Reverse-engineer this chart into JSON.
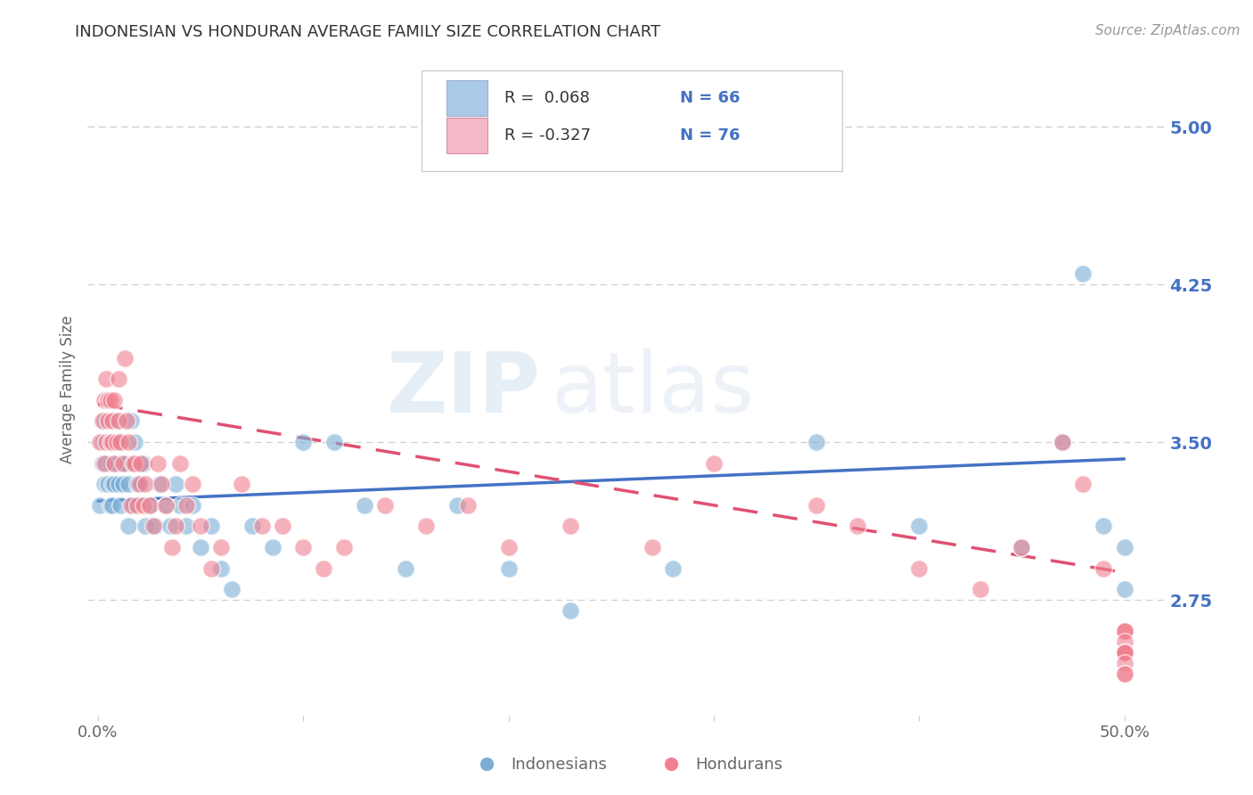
{
  "title": "INDONESIAN VS HONDURAN AVERAGE FAMILY SIZE CORRELATION CHART",
  "source": "Source: ZipAtlas.com",
  "ylabel": "Average Family Size",
  "right_yticks": [
    2.75,
    3.5,
    4.25,
    5.0
  ],
  "right_ytick_labels": [
    "2.75",
    "3.50",
    "4.25",
    "5.00"
  ],
  "legend_r1": "R =  0.068",
  "legend_n1": "N = 66",
  "legend_r2": "R = -0.327",
  "legend_n2": "N = 76",
  "watermark_zip": "ZIP",
  "watermark_atlas": "atlas",
  "indonesian_color": "#7aaed6",
  "honduran_color": "#f08090",
  "indonesian_trend_color": "#4472c4",
  "honduran_trend_color": "#e05070",
  "legend_box1_color": "#aac8e8",
  "legend_box2_color": "#f4b8c8",
  "indonesian_scatter_x": [
    0.001,
    0.002,
    0.002,
    0.003,
    0.003,
    0.004,
    0.004,
    0.005,
    0.005,
    0.006,
    0.006,
    0.006,
    0.007,
    0.007,
    0.008,
    0.008,
    0.009,
    0.009,
    0.01,
    0.01,
    0.011,
    0.011,
    0.012,
    0.013,
    0.014,
    0.015,
    0.015,
    0.016,
    0.017,
    0.018,
    0.019,
    0.02,
    0.021,
    0.022,
    0.023,
    0.025,
    0.028,
    0.03,
    0.033,
    0.035,
    0.038,
    0.04,
    0.043,
    0.046,
    0.05,
    0.055,
    0.06,
    0.065,
    0.075,
    0.085,
    0.1,
    0.115,
    0.13,
    0.15,
    0.175,
    0.2,
    0.23,
    0.28,
    0.35,
    0.4,
    0.45,
    0.47,
    0.48,
    0.49,
    0.5,
    0.5
  ],
  "indonesian_scatter_y": [
    3.2,
    3.4,
    3.5,
    3.3,
    3.6,
    3.4,
    3.5,
    3.5,
    3.3,
    3.2,
    3.4,
    3.5,
    3.3,
    3.2,
    3.4,
    3.3,
    3.5,
    3.6,
    3.3,
    3.4,
    3.5,
    3.2,
    3.3,
    3.4,
    3.4,
    3.3,
    3.1,
    3.6,
    3.2,
    3.5,
    3.3,
    3.4,
    3.3,
    3.4,
    3.1,
    3.2,
    3.1,
    3.3,
    3.2,
    3.1,
    3.3,
    3.2,
    3.1,
    3.2,
    3.0,
    3.1,
    2.9,
    2.8,
    3.1,
    3.0,
    3.5,
    3.5,
    3.2,
    2.9,
    3.2,
    2.9,
    2.7,
    2.9,
    3.5,
    3.1,
    3.0,
    3.5,
    4.3,
    3.1,
    3.0,
    2.8
  ],
  "honduran_scatter_x": [
    0.001,
    0.002,
    0.003,
    0.003,
    0.004,
    0.004,
    0.005,
    0.005,
    0.006,
    0.006,
    0.007,
    0.007,
    0.008,
    0.008,
    0.009,
    0.01,
    0.01,
    0.011,
    0.012,
    0.013,
    0.014,
    0.015,
    0.016,
    0.017,
    0.018,
    0.019,
    0.02,
    0.021,
    0.022,
    0.023,
    0.025,
    0.027,
    0.029,
    0.031,
    0.033,
    0.036,
    0.038,
    0.04,
    0.043,
    0.046,
    0.05,
    0.055,
    0.06,
    0.07,
    0.08,
    0.09,
    0.1,
    0.11,
    0.12,
    0.14,
    0.16,
    0.18,
    0.2,
    0.23,
    0.27,
    0.3,
    0.35,
    0.37,
    0.4,
    0.43,
    0.45,
    0.47,
    0.48,
    0.49,
    0.5,
    0.5,
    0.5,
    0.5,
    0.5,
    0.5,
    0.5,
    0.5,
    0.5,
    0.5,
    0.5,
    0.5
  ],
  "honduran_scatter_y": [
    3.5,
    3.6,
    3.4,
    3.7,
    3.5,
    3.8,
    3.6,
    3.7,
    3.5,
    3.7,
    3.6,
    3.5,
    3.4,
    3.7,
    3.5,
    3.8,
    3.6,
    3.5,
    3.4,
    3.9,
    3.6,
    3.5,
    3.2,
    3.4,
    3.4,
    3.2,
    3.3,
    3.4,
    3.2,
    3.3,
    3.2,
    3.1,
    3.4,
    3.3,
    3.2,
    3.0,
    3.1,
    3.4,
    3.2,
    3.3,
    3.1,
    2.9,
    3.0,
    3.3,
    3.1,
    3.1,
    3.0,
    2.9,
    3.0,
    3.2,
    3.1,
    3.2,
    3.0,
    3.1,
    3.0,
    3.4,
    3.2,
    3.1,
    2.9,
    2.8,
    3.0,
    3.5,
    3.3,
    2.9,
    2.6,
    2.6,
    2.5,
    2.6,
    2.5,
    2.55,
    2.5,
    2.5,
    2.5,
    2.45,
    2.4,
    2.4
  ],
  "indonesian_trend": [
    0.0,
    0.5,
    3.22,
    3.42
  ],
  "honduran_trend": [
    0.0,
    0.5,
    3.68,
    2.88
  ],
  "xlim": [
    -0.005,
    0.52
  ],
  "ylim": [
    2.2,
    5.3
  ],
  "background_color": "#ffffff",
  "grid_color": "#d0d0d0",
  "title_color": "#333333",
  "axis_label_color": "#666666",
  "right_tick_color": "#4472c4",
  "legend_text_color": "#333333",
  "legend_num_color": "#4472c4"
}
